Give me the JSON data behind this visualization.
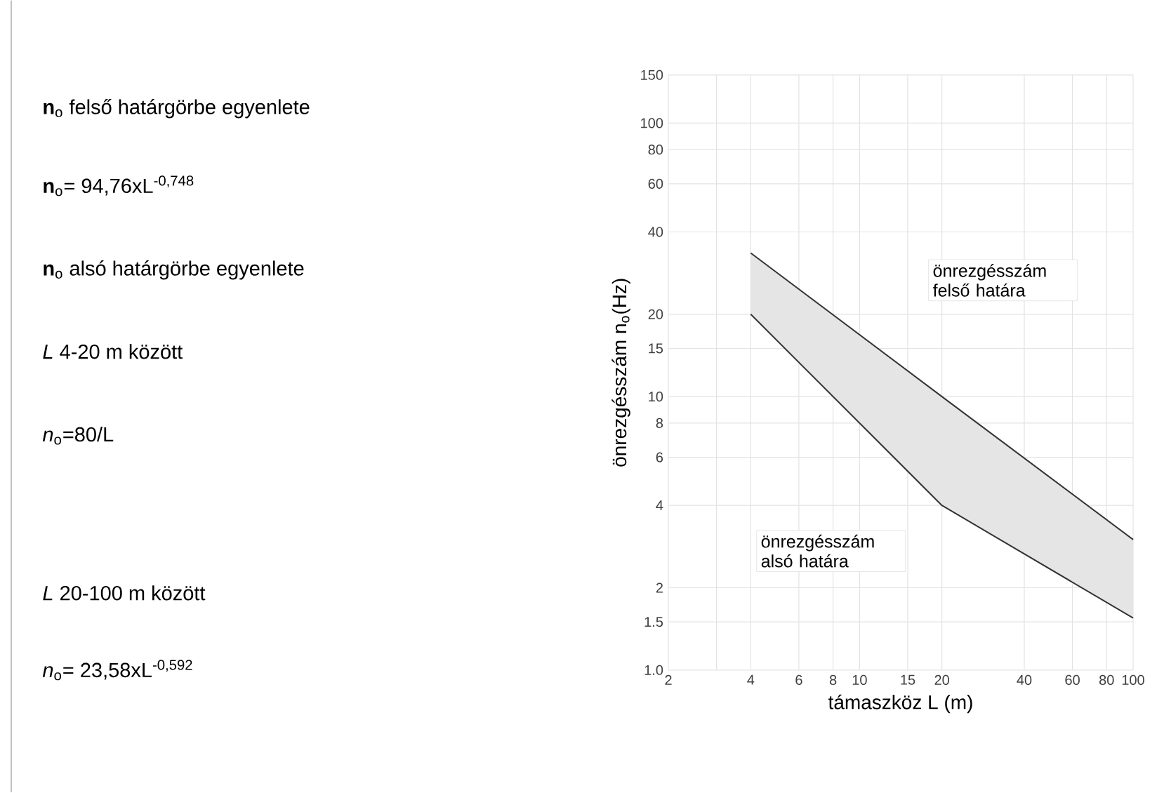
{
  "chart_data": {
    "type": "line",
    "xlabel": "támaszköz   L (m)",
    "ylabel": "önrezgésszám  n$_{o}$(Hz)",
    "log": "xy",
    "grid": true,
    "marker": "none",
    "x": [
      4,
      20,
      100
    ],
    "xlim": [
      2,
      100
    ],
    "ylim": [
      1,
      150
    ],
    "xticks": [
      2,
      {
        "value": 3,
        "label": null
      },
      4,
      6,
      8,
      10,
      15,
      20,
      40,
      60,
      80,
      100
    ],
    "yticks": [
      {
        "value": 1,
        "label": "1.0"
      },
      1.5,
      2,
      4,
      6,
      8,
      10,
      15,
      20,
      40,
      60,
      80,
      100,
      150
    ],
    "series": [
      {
        "color": "#333333",
        "values": [
          33.5,
          10,
          3.0
        ],
        "lower": [
          20,
          4,
          1.55
        ],
        "upper": [
          33.5,
          10,
          3.0
        ]
      },
      {
        "color": "#333333",
        "values": [
          20,
          4,
          1.55
        ]
      }
    ],
    "annotations": [
      "**n**$_{o}$ felső határgörbe egyenlete",
      "**n**$_{o}$= 94,76xL$^{-0,748}$",
      "**n**$_{o}$ alsó határgörbe egyenlete",
      "*L*  4-20 m között",
      "*n*$_{o}$=80/L",
      "*L*  20-100 m között",
      "*n*$_{o}$= 23,58xL$^{-0,592}$",
      "önrezgésszám felső határa",
      "önrezgésszám alsó határa"
    ]
  }
}
